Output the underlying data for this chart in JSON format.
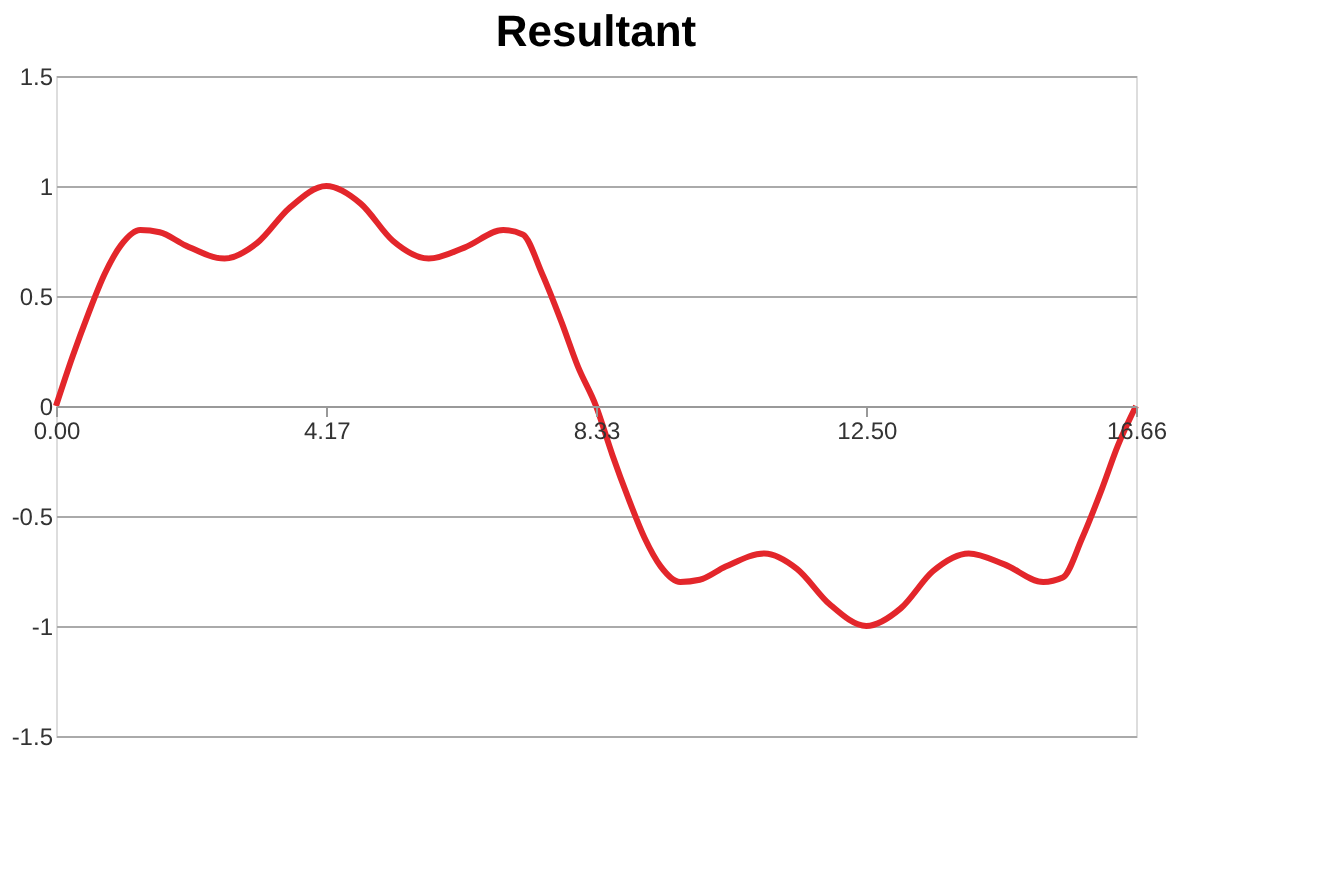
{
  "chart_data": {
    "type": "line",
    "title": "Resultant",
    "x": [
      0,
      0.25,
      0.5,
      0.75,
      1.0,
      1.3,
      1.6,
      2.0,
      2.6,
      3.1,
      3.6,
      4.17,
      4.7,
      5.2,
      5.75,
      6.3,
      6.9,
      7.2,
      7.5,
      7.8,
      8.05,
      8.33,
      8.58,
      8.83,
      9.08,
      9.33,
      9.63,
      9.93,
      10.33,
      10.93,
      11.43,
      11.93,
      12.5,
      13.03,
      13.53,
      14.08,
      14.63,
      15.23,
      15.53,
      15.83,
      16.13,
      16.38,
      16.66
    ],
    "series": [
      {
        "color": "#e3262b",
        "values": [
          0,
          0.22,
          0.42,
          0.6,
          0.73,
          0.8,
          0.79,
          0.73,
          0.67,
          0.74,
          0.9,
          1.0,
          0.92,
          0.75,
          0.67,
          0.72,
          0.8,
          0.78,
          0.6,
          0.38,
          0.18,
          0,
          -0.22,
          -0.42,
          -0.6,
          -0.73,
          -0.8,
          -0.79,
          -0.73,
          -0.67,
          -0.74,
          -0.9,
          -1.0,
          -0.92,
          -0.75,
          -0.67,
          -0.72,
          -0.8,
          -0.78,
          -0.6,
          -0.38,
          -0.18,
          0
        ]
      }
    ],
    "xlim": [
      0,
      16.66
    ],
    "xticks": [
      {
        "value": 0,
        "label": "0.00"
      },
      4.17,
      8.33,
      {
        "value": 12.5,
        "label": "12.50"
      },
      16.66
    ],
    "ylim": [
      -1.5,
      1.5
    ],
    "yticks": [
      -1.5,
      -1,
      -0.5,
      0,
      0.5,
      1,
      1.5
    ],
    "grid": "y",
    "marker": "none",
    "line_style": "solid"
  }
}
